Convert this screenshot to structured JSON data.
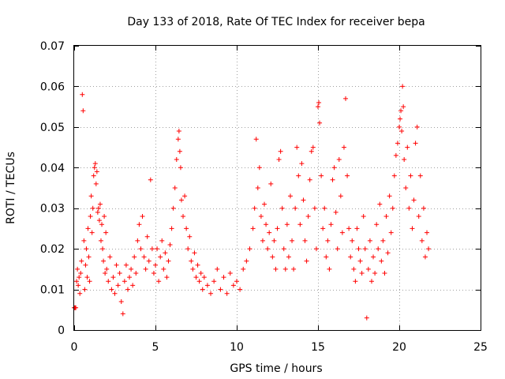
{
  "chart_data": {
    "type": "scatter",
    "title": "Day 133 of 2018, Rate Of TEC Index for receiver bepa",
    "xlabel": "GPS time / hours",
    "ylabel": "ROTI / TECUs",
    "xlim": [
      0,
      25
    ],
    "ylim": [
      0,
      0.07
    ],
    "xticks": [
      "0",
      "5",
      "10",
      "15",
      "20",
      "25"
    ],
    "yticks": [
      "0",
      "0.01",
      "0.02",
      "0.03",
      "0.04",
      "0.05",
      "0.06",
      "0.07"
    ],
    "grid": true,
    "marker": "+",
    "color": "#ff0000",
    "series": [
      {
        "points": [
          [
            0.0,
            0.0055
          ],
          [
            0.05,
            0.0055
          ],
          [
            0.1,
            0.0055
          ],
          [
            0.15,
            0.012
          ],
          [
            0.2,
            0.015
          ],
          [
            0.25,
            0.011
          ],
          [
            0.3,
            0.013
          ],
          [
            0.35,
            0.009
          ],
          [
            0.4,
            0.014
          ],
          [
            0.45,
            0.017
          ],
          [
            0.5,
            0.058
          ],
          [
            0.55,
            0.054
          ],
          [
            0.6,
            0.022
          ],
          [
            0.65,
            0.01
          ],
          [
            0.7,
            0.016
          ],
          [
            0.75,
            0.02
          ],
          [
            0.8,
            0.013
          ],
          [
            0.85,
            0.025
          ],
          [
            0.9,
            0.018
          ],
          [
            0.95,
            0.012
          ],
          [
            1.0,
            0.028
          ],
          [
            1.05,
            0.033
          ],
          [
            1.1,
            0.024
          ],
          [
            1.15,
            0.03
          ],
          [
            1.2,
            0.038
          ],
          [
            1.25,
            0.04
          ],
          [
            1.3,
            0.041
          ],
          [
            1.35,
            0.036
          ],
          [
            1.4,
            0.039
          ],
          [
            1.45,
            0.029
          ],
          [
            1.5,
            0.03
          ],
          [
            1.55,
            0.027
          ],
          [
            1.6,
            0.031
          ],
          [
            1.65,
            0.022
          ],
          [
            1.7,
            0.026
          ],
          [
            1.75,
            0.02
          ],
          [
            1.8,
            0.017
          ],
          [
            1.85,
            0.028
          ],
          [
            1.9,
            0.014
          ],
          [
            1.95,
            0.024
          ],
          [
            2.0,
            0.015
          ],
          [
            2.1,
            0.012
          ],
          [
            2.2,
            0.018
          ],
          [
            2.3,
            0.01
          ],
          [
            2.4,
            0.013
          ],
          [
            2.5,
            0.009
          ],
          [
            2.6,
            0.016
          ],
          [
            2.7,
            0.011
          ],
          [
            2.8,
            0.014
          ],
          [
            2.9,
            0.007
          ],
          [
            3.0,
            0.004
          ],
          [
            3.1,
            0.012
          ],
          [
            3.2,
            0.016
          ],
          [
            3.3,
            0.01
          ],
          [
            3.4,
            0.013
          ],
          [
            3.5,
            0.015
          ],
          [
            3.6,
            0.011
          ],
          [
            3.7,
            0.018
          ],
          [
            3.8,
            0.014
          ],
          [
            3.9,
            0.022
          ],
          [
            4.0,
            0.026
          ],
          [
            4.1,
            0.02
          ],
          [
            4.2,
            0.028
          ],
          [
            4.3,
            0.018
          ],
          [
            4.4,
            0.015
          ],
          [
            4.5,
            0.023
          ],
          [
            4.6,
            0.017
          ],
          [
            4.7,
            0.037
          ],
          [
            4.8,
            0.02
          ],
          [
            4.9,
            0.014
          ],
          [
            5.0,
            0.016
          ],
          [
            5.1,
            0.02
          ],
          [
            5.2,
            0.012
          ],
          [
            5.3,
            0.018
          ],
          [
            5.4,
            0.022
          ],
          [
            5.5,
            0.015
          ],
          [
            5.6,
            0.019
          ],
          [
            5.7,
            0.013
          ],
          [
            5.8,
            0.017
          ],
          [
            5.9,
            0.021
          ],
          [
            6.0,
            0.025
          ],
          [
            6.1,
            0.03
          ],
          [
            6.2,
            0.035
          ],
          [
            6.3,
            0.042
          ],
          [
            6.4,
            0.047
          ],
          [
            6.45,
            0.049
          ],
          [
            6.5,
            0.044
          ],
          [
            6.55,
            0.04
          ],
          [
            6.6,
            0.032
          ],
          [
            6.7,
            0.028
          ],
          [
            6.8,
            0.033
          ],
          [
            6.9,
            0.025
          ],
          [
            7.0,
            0.02
          ],
          [
            7.1,
            0.023
          ],
          [
            7.2,
            0.017
          ],
          [
            7.3,
            0.015
          ],
          [
            7.4,
            0.019
          ],
          [
            7.5,
            0.013
          ],
          [
            7.6,
            0.016
          ],
          [
            7.7,
            0.012
          ],
          [
            7.8,
            0.014
          ],
          [
            7.9,
            0.01
          ],
          [
            8.0,
            0.013
          ],
          [
            8.2,
            0.011
          ],
          [
            8.4,
            0.009
          ],
          [
            8.6,
            0.012
          ],
          [
            8.8,
            0.015
          ],
          [
            9.0,
            0.01
          ],
          [
            9.2,
            0.013
          ],
          [
            9.4,
            0.009
          ],
          [
            9.6,
            0.014
          ],
          [
            9.8,
            0.011
          ],
          [
            10.0,
            0.012
          ],
          [
            10.2,
            0.01
          ],
          [
            10.4,
            0.015
          ],
          [
            10.6,
            0.017
          ],
          [
            10.8,
            0.02
          ],
          [
            11.0,
            0.025
          ],
          [
            11.1,
            0.03
          ],
          [
            11.2,
            0.047
          ],
          [
            11.3,
            0.035
          ],
          [
            11.4,
            0.04
          ],
          [
            11.5,
            0.028
          ],
          [
            11.6,
            0.022
          ],
          [
            11.7,
            0.031
          ],
          [
            11.8,
            0.026
          ],
          [
            11.9,
            0.02
          ],
          [
            12.0,
            0.024
          ],
          [
            12.1,
            0.036
          ],
          [
            12.2,
            0.018
          ],
          [
            12.3,
            0.022
          ],
          [
            12.4,
            0.015
          ],
          [
            12.5,
            0.025
          ],
          [
            12.6,
            0.042
          ],
          [
            12.7,
            0.044
          ],
          [
            12.8,
            0.03
          ],
          [
            12.9,
            0.02
          ],
          [
            13.0,
            0.015
          ],
          [
            13.1,
            0.026
          ],
          [
            13.2,
            0.018
          ],
          [
            13.3,
            0.033
          ],
          [
            13.4,
            0.022
          ],
          [
            13.5,
            0.015
          ],
          [
            13.6,
            0.03
          ],
          [
            13.7,
            0.045
          ],
          [
            13.8,
            0.038
          ],
          [
            13.9,
            0.026
          ],
          [
            14.0,
            0.041
          ],
          [
            14.1,
            0.032
          ],
          [
            14.2,
            0.022
          ],
          [
            14.3,
            0.017
          ],
          [
            14.4,
            0.028
          ],
          [
            14.5,
            0.037
          ],
          [
            14.6,
            0.044
          ],
          [
            14.7,
            0.045
          ],
          [
            14.8,
            0.03
          ],
          [
            14.9,
            0.02
          ],
          [
            15.0,
            0.055
          ],
          [
            15.05,
            0.056
          ],
          [
            15.1,
            0.051
          ],
          [
            15.2,
            0.038
          ],
          [
            15.3,
            0.025
          ],
          [
            15.4,
            0.03
          ],
          [
            15.5,
            0.018
          ],
          [
            15.6,
            0.022
          ],
          [
            15.7,
            0.015
          ],
          [
            15.8,
            0.026
          ],
          [
            15.9,
            0.037
          ],
          [
            16.0,
            0.04
          ],
          [
            16.1,
            0.029
          ],
          [
            16.2,
            0.02
          ],
          [
            16.3,
            0.042
          ],
          [
            16.4,
            0.033
          ],
          [
            16.5,
            0.024
          ],
          [
            16.6,
            0.045
          ],
          [
            16.7,
            0.057
          ],
          [
            16.8,
            0.038
          ],
          [
            16.9,
            0.025
          ],
          [
            17.0,
            0.018
          ],
          [
            17.1,
            0.022
          ],
          [
            17.2,
            0.015
          ],
          [
            17.3,
            0.012
          ],
          [
            17.4,
            0.025
          ],
          [
            17.5,
            0.02
          ],
          [
            17.6,
            0.017
          ],
          [
            17.7,
            0.014
          ],
          [
            17.8,
            0.028
          ],
          [
            17.9,
            0.02
          ],
          [
            18.0,
            0.003
          ],
          [
            18.1,
            0.015
          ],
          [
            18.2,
            0.022
          ],
          [
            18.3,
            0.012
          ],
          [
            18.4,
            0.018
          ],
          [
            18.5,
            0.014
          ],
          [
            18.6,
            0.026
          ],
          [
            18.7,
            0.02
          ],
          [
            18.8,
            0.031
          ],
          [
            18.9,
            0.017
          ],
          [
            19.0,
            0.022
          ],
          [
            19.1,
            0.014
          ],
          [
            19.2,
            0.028
          ],
          [
            19.3,
            0.019
          ],
          [
            19.4,
            0.033
          ],
          [
            19.5,
            0.024
          ],
          [
            19.6,
            0.03
          ],
          [
            19.7,
            0.038
          ],
          [
            19.8,
            0.043
          ],
          [
            19.9,
            0.046
          ],
          [
            20.0,
            0.05
          ],
          [
            20.05,
            0.052
          ],
          [
            20.1,
            0.054
          ],
          [
            20.15,
            0.049
          ],
          [
            20.2,
            0.06
          ],
          [
            20.25,
            0.055
          ],
          [
            20.3,
            0.042
          ],
          [
            20.4,
            0.035
          ],
          [
            20.5,
            0.045
          ],
          [
            20.6,
            0.03
          ],
          [
            20.7,
            0.038
          ],
          [
            20.8,
            0.025
          ],
          [
            20.9,
            0.032
          ],
          [
            21.0,
            0.046
          ],
          [
            21.1,
            0.05
          ],
          [
            21.2,
            0.028
          ],
          [
            21.3,
            0.038
          ],
          [
            21.4,
            0.022
          ],
          [
            21.5,
            0.03
          ],
          [
            21.6,
            0.018
          ],
          [
            21.7,
            0.024
          ],
          [
            21.8,
            0.02
          ]
        ]
      }
    ]
  }
}
